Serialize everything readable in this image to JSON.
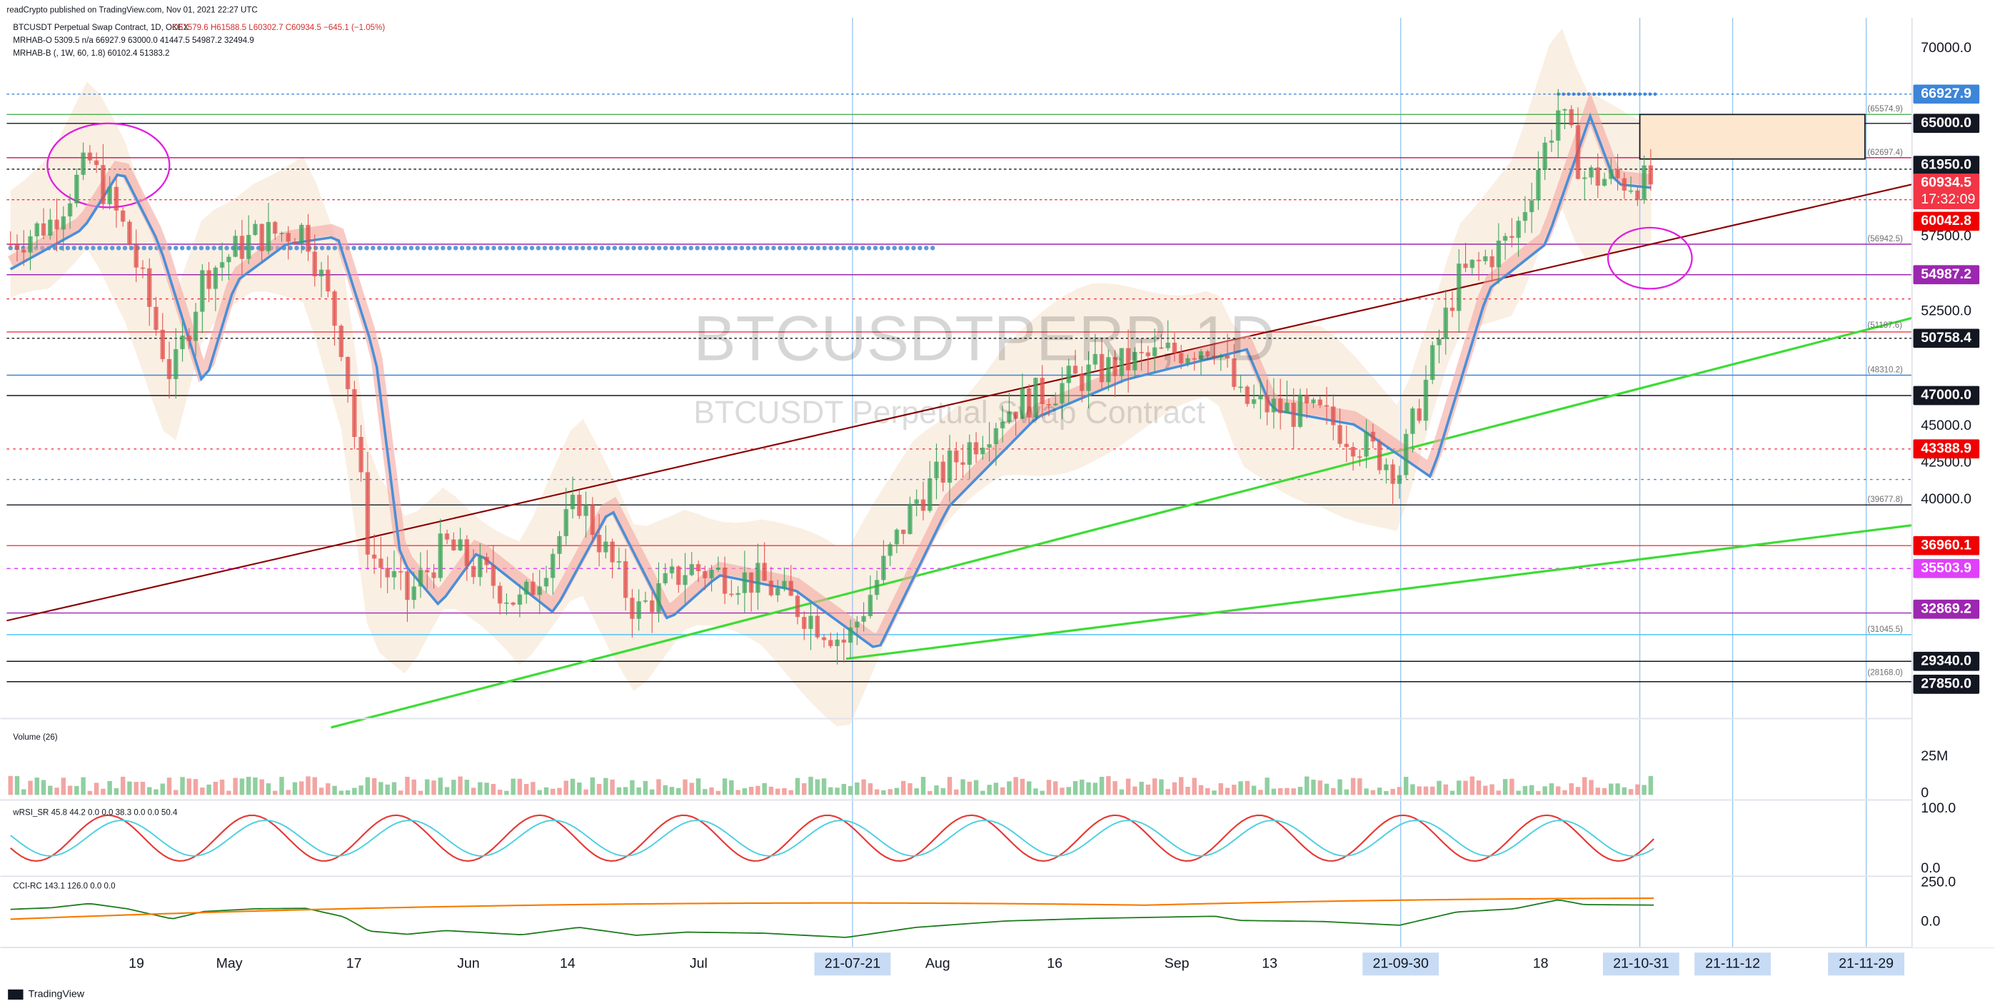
{
  "header": {
    "published": "readCrypto published on TradingView.com, Nov 01, 2021 22:27 UTC",
    "symbol": "BTCUSDT Perpetual Swap Contract, 1D, OKEX",
    "ohlc": "O61579.6 H61588.5 L60302.7 C60934.5 −645.1 (−1.05%)",
    "indicators": [
      "MRHAB-O 5309.5 n/a 66927.9 63000.0 41447.5 54987.2 32494.9",
      "MRHAB-B (, 1W, 60, 1.8) 60102.4 51383.2"
    ]
  },
  "watermark": {
    "symbol": "BTCUSDTPERP, 1D",
    "description": "BTCUSDT Perpetual Swap Contract"
  },
  "price_axis": [
    "70000.0",
    "57500.0",
    "52500.0",
    "45000.0",
    "42500.0",
    "40000.0"
  ],
  "price_tags": [
    {
      "label": "66927.9",
      "color": "#3d85d8"
    },
    {
      "label": "65000.0",
      "color": "#131722"
    },
    {
      "label": "61950.0",
      "color": "#131722"
    },
    {
      "label": "60934.5",
      "countdown": "17:32:09",
      "color": "#f23645"
    },
    {
      "label": "60042.8",
      "color": "#f00000"
    },
    {
      "label": "54987.2",
      "color": "#9c27b0"
    },
    {
      "label": "50758.4",
      "color": "#131722"
    },
    {
      "label": "47000.0",
      "color": "#131722"
    },
    {
      "label": "43388.9",
      "color": "#f00000"
    },
    {
      "label": "36960.1",
      "color": "#f00000"
    },
    {
      "label": "35503.9",
      "color": "#e040fb"
    },
    {
      "label": "32869.2",
      "color": "#9c27b0"
    },
    {
      "label": "29340.0",
      "color": "#131722"
    },
    {
      "label": "27850.0",
      "color": "#131722"
    }
  ],
  "line_labels": [
    "(65574.9)",
    "(62697.4)",
    "(56942.5)",
    "(51187.6)",
    "(48310.2)",
    "(39677.8)",
    "(31045.5)",
    "(28168.0)"
  ],
  "time_axis": [
    "19",
    "May",
    "17",
    "Jun",
    "14",
    "Jul",
    "21-07-21",
    "Aug",
    "16",
    "Sep",
    "13",
    "21-09-30",
    "18",
    "21-10-31",
    "21-11-12",
    "21-11-29"
  ],
  "panes": [
    {
      "label": "Volume (26)",
      "axis": [
        "25M",
        "0"
      ]
    },
    {
      "label": "wRSI_SR 45.8 44.2 0.0 0.0 38.3 0.0 0.0 50.4",
      "axis": [
        "100.0",
        "0.0"
      ]
    },
    {
      "label": "CCI-RC 143.1 126.0 0.0 0.0",
      "axis": [
        "250.0",
        "0.0"
      ]
    }
  ],
  "footer": "TradingView"
}
